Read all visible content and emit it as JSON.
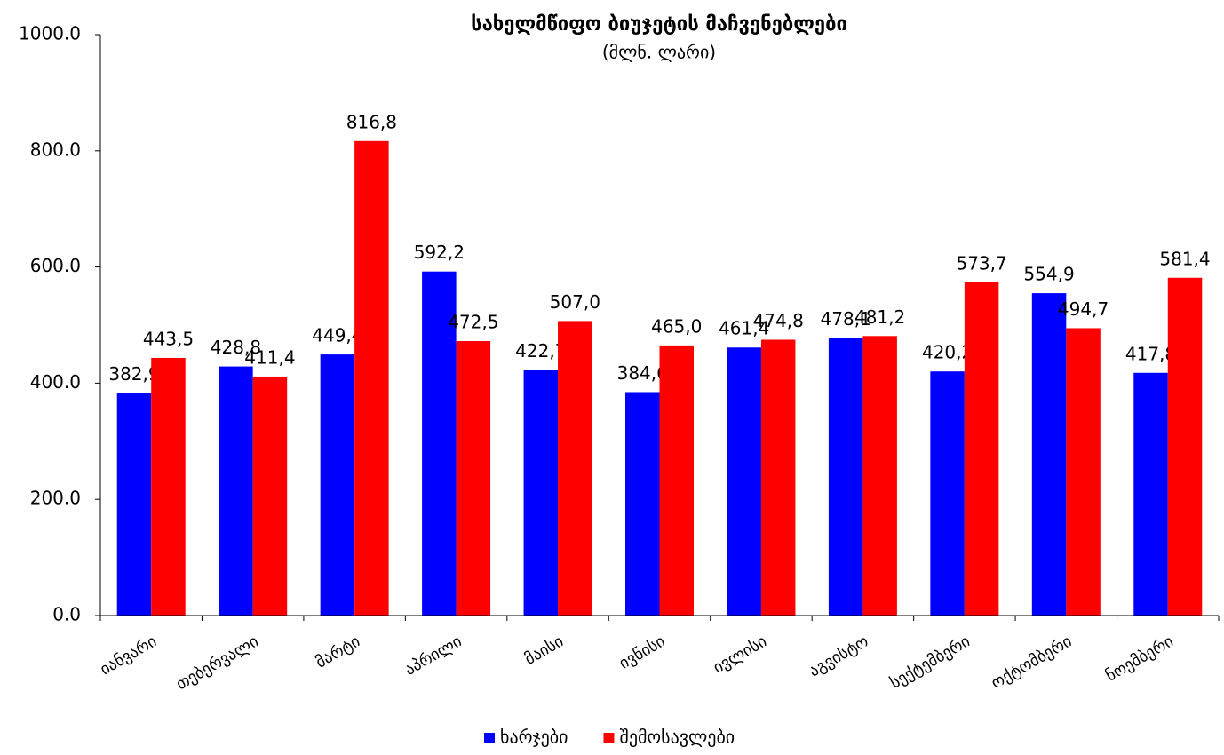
{
  "chart_data": {
    "type": "bar",
    "title": "სახელმწიფო ბიუჯეტის მაჩვენებლები",
    "subtitle": "(მლნ. ლარი)",
    "categories": [
      "იანვარი",
      "თებერვალი",
      "მარტი",
      "აპრილი",
      "მაისი",
      "ივნისი",
      "ივლისი",
      "აგვისტო",
      "სექტემბერი",
      "ოქტომბერი",
      "ნოემბერი"
    ],
    "series": [
      {
        "name": "ხარჯები",
        "color": "#0000ff",
        "values": [
          382.9,
          428.8,
          449.4,
          592.2,
          422.7,
          384.6,
          461.4,
          478.1,
          420.2,
          554.9,
          417.8
        ],
        "value_labels": [
          "382,9",
          "428,8",
          "449,4",
          "592,2",
          "422,7",
          "384,6",
          "461,4",
          "478,1",
          "420,2",
          "554,9",
          "417,8"
        ]
      },
      {
        "name": "შემოსავლები",
        "color": "#ff0000",
        "values": [
          443.5,
          411.4,
          816.8,
          472.5,
          507.0,
          465.0,
          474.8,
          481.2,
          573.7,
          494.7,
          581.4
        ],
        "value_labels": [
          "443,5",
          "411,4",
          "816,8",
          "472,5",
          "507,0",
          "465,0",
          "474,8",
          "481,2",
          "573,7",
          "494,7",
          "581,4"
        ]
      }
    ],
    "ylim": [
      0,
      1000
    ],
    "yticks": [
      {
        "value": 0,
        "label": "0.0"
      },
      {
        "value": 200,
        "label": "200.0"
      },
      {
        "value": 400,
        "label": "400.0"
      },
      {
        "value": 600,
        "label": "600.0"
      },
      {
        "value": 800,
        "label": "800.0"
      },
      {
        "value": 1000,
        "label": "1000.0"
      }
    ],
    "grid": false,
    "legend": "bottom"
  }
}
